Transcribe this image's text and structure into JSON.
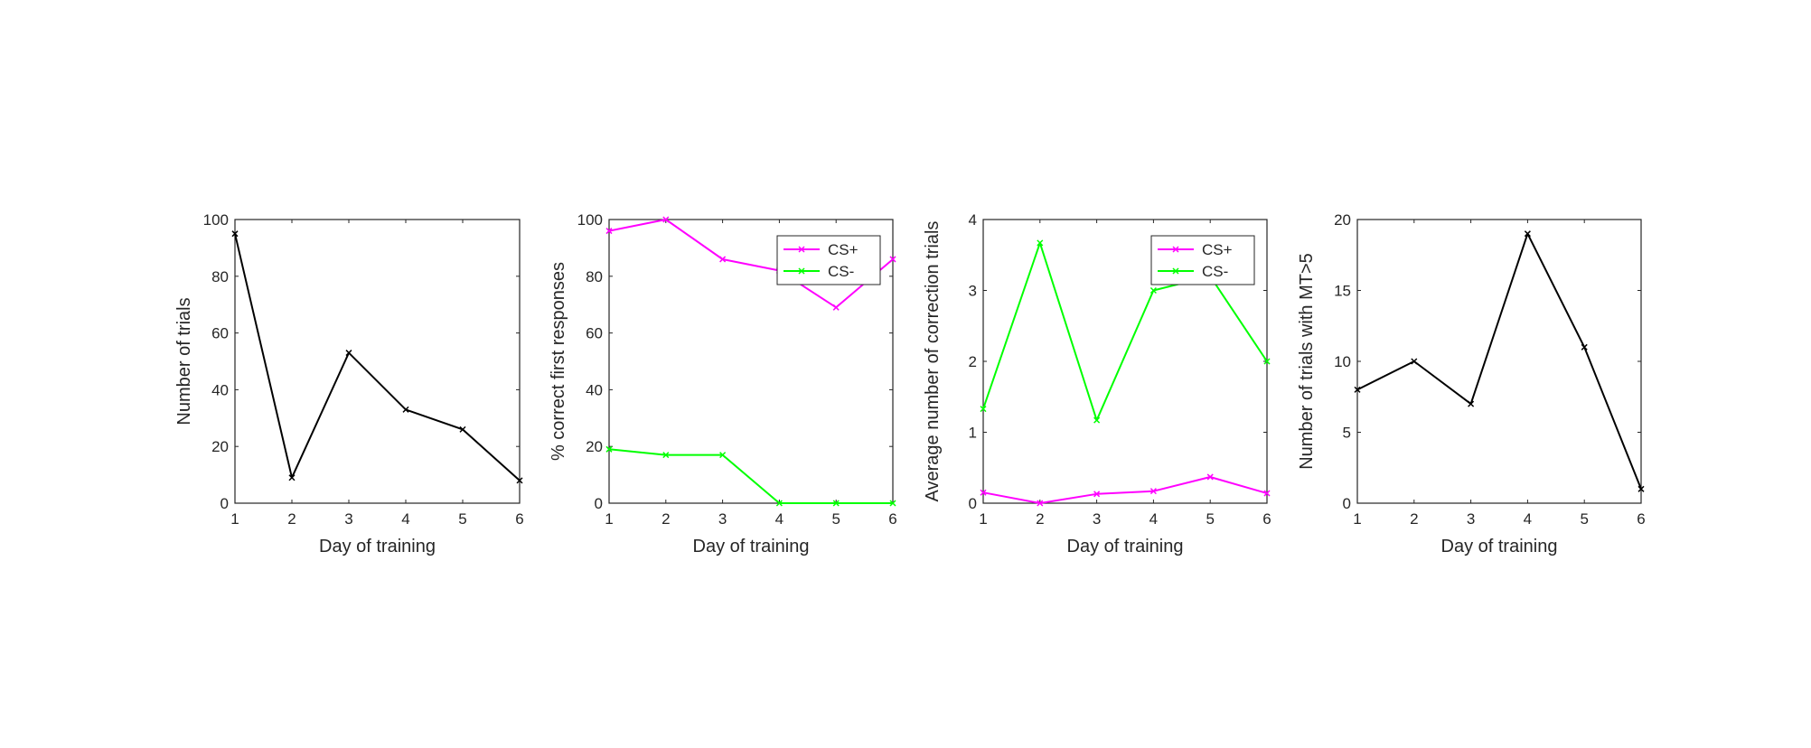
{
  "chart_data": [
    {
      "type": "line",
      "x": [
        1,
        2,
        3,
        4,
        5,
        6
      ],
      "xlabel": "Day of training",
      "ylabel": "Number of trials",
      "xlim": [
        1,
        6
      ],
      "ylim": [
        0,
        100
      ],
      "xticks": [
        1,
        2,
        3,
        4,
        5,
        6
      ],
      "yticks": [
        0,
        20,
        40,
        60,
        80,
        100
      ],
      "legend": null,
      "series": [
        {
          "values": [
            95,
            9,
            53,
            33,
            26,
            8
          ],
          "color": "#000000"
        }
      ]
    },
    {
      "type": "line",
      "x": [
        1,
        2,
        3,
        4,
        5,
        6
      ],
      "xlabel": "Day of training",
      "ylabel": "% correct first responses",
      "xlim": [
        1,
        6
      ],
      "ylim": [
        0,
        100
      ],
      "xticks": [
        1,
        2,
        3,
        4,
        5,
        6
      ],
      "yticks": [
        0,
        20,
        40,
        60,
        80,
        100
      ],
      "legend": "top-right",
      "series": [
        {
          "name": "CS+",
          "values": [
            96,
            100,
            86,
            82,
            69,
            86
          ],
          "color": "#ff00ff"
        },
        {
          "name": "CS-",
          "values": [
            19,
            17,
            17,
            0,
            0,
            0
          ],
          "color": "#00ff00"
        }
      ]
    },
    {
      "type": "line",
      "x": [
        1,
        2,
        3,
        4,
        5,
        6
      ],
      "xlabel": "Day of training",
      "ylabel": "Average number of correction trials",
      "xlim": [
        1,
        6
      ],
      "ylim": [
        0,
        4
      ],
      "xticks": [
        1,
        2,
        3,
        4,
        5,
        6
      ],
      "yticks": [
        0,
        1,
        2,
        3,
        4
      ],
      "legend": "top-right",
      "series": [
        {
          "name": "CS+",
          "values": [
            0.15,
            0.0,
            0.13,
            0.17,
            0.37,
            0.14
          ],
          "color": "#ff00ff"
        },
        {
          "name": "CS-",
          "values": [
            1.33,
            3.67,
            1.17,
            3.0,
            3.2,
            2.0
          ],
          "color": "#00ff00"
        }
      ]
    },
    {
      "type": "line",
      "x": [
        1,
        2,
        3,
        4,
        5,
        6
      ],
      "xlabel": "Day of training",
      "ylabel": "Number of trials with MT>5",
      "xlim": [
        1,
        6
      ],
      "ylim": [
        0,
        20
      ],
      "xticks": [
        1,
        2,
        3,
        4,
        5,
        6
      ],
      "yticks": [
        0,
        5,
        10,
        15,
        20
      ],
      "legend": null,
      "series": [
        {
          "values": [
            8,
            10,
            7,
            19,
            11,
            1
          ],
          "color": "#000000"
        }
      ]
    }
  ]
}
